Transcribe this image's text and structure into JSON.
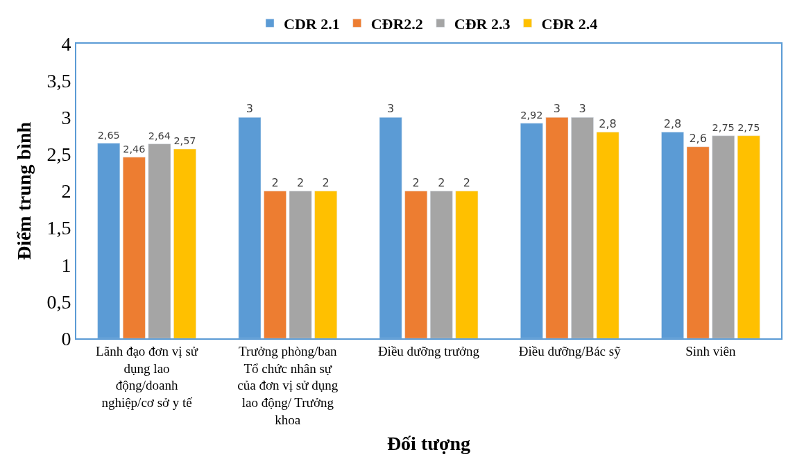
{
  "chart_data": {
    "type": "bar",
    "xlabel": "Đối tượng",
    "ylabel": "Điểm trung bình",
    "categories": [
      "Lãnh đạo đơn vị sử dụng lao động/doanh nghiệp/cơ sở y tế",
      "Trưởng phòng/ban Tổ chức nhân sự của đơn vị sử dụng lao động/ Trưởng khoa",
      "Điều dưỡng trưởng",
      "Điều dưỡng/Bác sỹ",
      "Sinh viên"
    ],
    "series": [
      {
        "name": "CDR 2.1",
        "color": "#5b9bd5",
        "values": [
          2.65,
          3,
          3,
          2.92,
          2.8
        ],
        "value_labels": [
          "2,65",
          "3",
          "3",
          "2,92",
          "2,8"
        ]
      },
      {
        "name": "CĐR2.2",
        "color": "#ed7d31",
        "values": [
          2.46,
          2,
          2,
          3,
          2.6
        ],
        "value_labels": [
          "2,46",
          "2",
          "2",
          "3",
          "2,6"
        ]
      },
      {
        "name": "CĐR 2.3",
        "color": "#a5a5a5",
        "values": [
          2.64,
          2,
          2,
          3,
          2.75
        ],
        "value_labels": [
          "2,64",
          "2",
          "2",
          "3",
          "2,75"
        ]
      },
      {
        "name": "CĐR 2.4",
        "color": "#ffc000",
        "values": [
          2.57,
          2,
          2,
          2.8,
          2.75
        ],
        "value_labels": [
          "2,57",
          "2",
          "2",
          "2,8",
          "2,75"
        ]
      }
    ],
    "ylim": [
      0,
      4
    ],
    "yticks": [
      0,
      {
        "value": 0.5,
        "label": "0,5"
      },
      1,
      {
        "value": 1.5,
        "label": "1,5"
      },
      2,
      {
        "value": 2.5,
        "label": "2,5"
      },
      3,
      {
        "value": 3.5,
        "label": "3,5"
      },
      4
    ],
    "legend": "top"
  }
}
